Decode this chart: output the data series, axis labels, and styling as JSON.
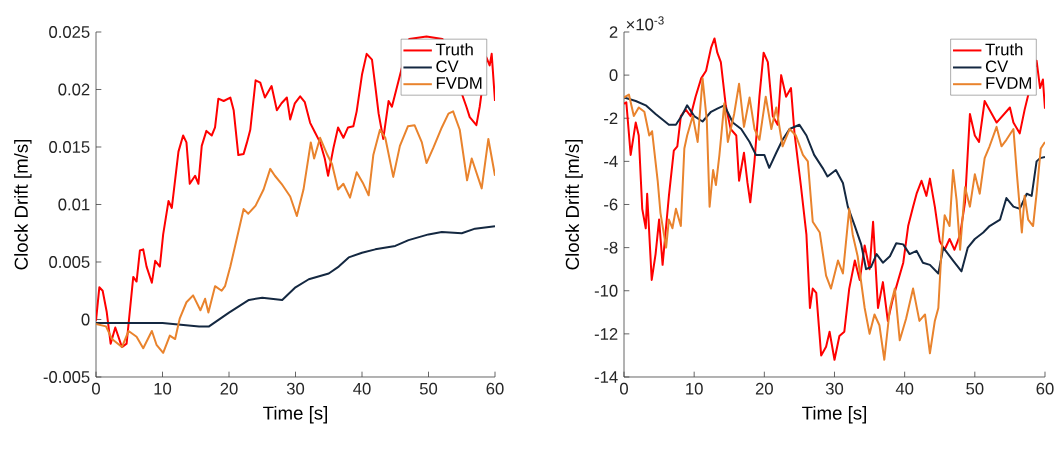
{
  "chart_data": [
    {
      "type": "line",
      "xlabel": "Time [s]",
      "ylabel": "Clock Drift [m/s]",
      "xlim": [
        0,
        60
      ],
      "ylim": [
        -0.005,
        0.025
      ],
      "xticks": [
        0,
        10,
        20,
        30,
        40,
        50,
        60
      ],
      "yticks": [
        -0.005,
        0,
        0.005,
        0.01,
        0.015,
        0.02,
        0.025
      ],
      "legend": "top right",
      "series": [
        {
          "name": "Truth",
          "color": "#ff0000",
          "x": [
            0,
            0.5,
            1.0,
            1.6,
            2.2,
            2.9,
            3.9,
            4.6,
            5.6,
            6.1,
            6.6,
            7.1,
            7.6,
            8.4,
            8.9,
            9.6,
            10.1,
            10.9,
            11.4,
            12.4,
            13.1,
            13.6,
            14.1,
            14.9,
            15.4,
            15.9,
            16.6,
            17.4,
            17.9,
            18.4,
            19.2,
            20.2,
            20.7,
            21.4,
            22.2,
            22.7,
            23.2,
            24.0,
            24.7,
            25.4,
            26.4,
            27.2,
            27.9,
            28.7,
            29.2,
            29.9,
            30.7,
            31.4,
            32.2,
            32.9,
            33.7,
            34.4,
            34.9,
            35.7,
            36.4,
            37.2,
            37.9,
            38.7,
            39.2,
            40.0,
            40.7,
            41.5,
            42.0,
            42.5,
            43.2,
            44.0,
            44.5,
            47.1,
            49.7,
            52.1,
            55.7,
            56.2,
            57.2,
            57.7,
            58.7,
            59.2,
            59.5,
            60
          ],
          "values": [
            -0.0001,
            0.0028,
            0.0025,
            0.0007,
            -0.0021,
            -0.0007,
            -0.0024,
            -0.0021,
            0.0037,
            0.0033,
            0.006,
            0.0061,
            0.0046,
            0.0032,
            0.0051,
            0.0046,
            0.0074,
            0.0103,
            0.0097,
            0.0146,
            0.016,
            0.0154,
            0.0118,
            0.0125,
            0.0118,
            0.0151,
            0.0164,
            0.016,
            0.0167,
            0.0192,
            0.019,
            0.0193,
            0.0182,
            0.0143,
            0.0144,
            0.0154,
            0.0165,
            0.0208,
            0.0206,
            0.0193,
            0.0203,
            0.0182,
            0.0188,
            0.0193,
            0.0174,
            0.0188,
            0.0194,
            0.0189,
            0.0171,
            0.0163,
            0.0154,
            0.014,
            0.0125,
            0.0149,
            0.0167,
            0.0158,
            0.0167,
            0.0168,
            0.0181,
            0.0213,
            0.0231,
            0.0226,
            0.0203,
            0.0179,
            0.0157,
            0.019,
            0.0185,
            0.0244,
            0.0246,
            0.0244,
            0.0185,
            0.0176,
            0.0169,
            0.0185,
            0.0228,
            0.0221,
            0.0231,
            0.019
          ]
        },
        {
          "name": "CV",
          "color": "#142841",
          "x": [
            0,
            10,
            15.5,
            17,
            20,
            23,
            25,
            28,
            30,
            32,
            35,
            36.5,
            38,
            40,
            42,
            45,
            47,
            50,
            52,
            55,
            57,
            60
          ],
          "values": [
            -0.0003,
            -0.0003,
            -0.0006,
            -0.0006,
            0.0006,
            0.0017,
            0.0019,
            0.0017,
            0.0028,
            0.0035,
            0.004,
            0.0046,
            0.0054,
            0.0058,
            0.0061,
            0.0064,
            0.0069,
            0.0074,
            0.0076,
            0.0075,
            0.0079,
            0.0081
          ]
        },
        {
          "name": "FVDM",
          "color": "#e9832d",
          "x": [
            0,
            1.5,
            2.4,
            3.9,
            4.9,
            6.1,
            7.1,
            8.4,
            9.1,
            10.1,
            11.1,
            11.9,
            12.6,
            13.6,
            14.6,
            15.7,
            16.4,
            16.9,
            17.9,
            18.9,
            19.4,
            20.2,
            21.2,
            22.2,
            22.9,
            24.0,
            25.2,
            26.2,
            26.9,
            27.9,
            29.2,
            30.2,
            31.2,
            32.3,
            32.8,
            33.7,
            34.8,
            35.5,
            36.4,
            37.2,
            38.2,
            39.2,
            40.2,
            41.0,
            41.7,
            42.7,
            43.5,
            44.7,
            45.7,
            46.9,
            47.9,
            49.0,
            49.7,
            50.7,
            52.0,
            53.0,
            53.7,
            54.7,
            55.8,
            56.5,
            58.0,
            59.0,
            60
          ],
          "values": [
            -0.0004,
            -0.0006,
            -0.0017,
            -0.0024,
            -0.001,
            -0.0015,
            -0.0025,
            -0.001,
            -0.0022,
            -0.0029,
            -0.0014,
            -0.0017,
            0.0001,
            0.0015,
            0.0021,
            0.0008,
            0.0018,
            0.0006,
            0.0029,
            0.0025,
            0.0029,
            0.0046,
            0.0071,
            0.0096,
            0.0092,
            0.0099,
            0.0113,
            0.0131,
            0.0125,
            0.0118,
            0.0107,
            0.009,
            0.0113,
            0.0154,
            0.014,
            0.0158,
            0.0143,
            0.0135,
            0.0113,
            0.0118,
            0.0106,
            0.0128,
            0.0118,
            0.0108,
            0.0143,
            0.0165,
            0.0158,
            0.0124,
            0.0151,
            0.0168,
            0.0169,
            0.0154,
            0.0136,
            0.0149,
            0.0167,
            0.0179,
            0.0181,
            0.0165,
            0.0121,
            0.014,
            0.0114,
            0.0157,
            0.0125
          ]
        }
      ]
    },
    {
      "type": "line",
      "xlabel": "Time [s]",
      "ylabel": "Clock Drift [m/s]",
      "annotations": [
        "×10$^{-3}$"
      ],
      "xlim": [
        0,
        60
      ],
      "ylim": [
        -14,
        2
      ],
      "xticks": [
        0,
        10,
        20,
        30,
        40,
        50,
        60
      ],
      "yticks": [
        -14,
        -12,
        -10,
        -8,
        -6,
        -4,
        -2,
        0,
        2
      ],
      "legend": "top right",
      "series": [
        {
          "name": "Truth",
          "color": "#ff0000",
          "x": [
            0,
            0.33,
            0.95,
            1.67,
            2.1,
            2.6,
            3.1,
            3.3,
            3.95,
            4.5,
            5.0,
            5.5,
            6.4,
            7.1,
            7.6,
            8.1,
            8.8,
            9.5,
            10.2,
            11.0,
            11.7,
            12.4,
            12.9,
            13.3,
            13.8,
            14.5,
            15.2,
            16.0,
            16.4,
            17.1,
            17.6,
            18.0,
            18.6,
            19.3,
            19.9,
            20.5,
            21.2,
            21.9,
            22.4,
            23.1,
            23.8,
            24.3,
            25.2,
            26.0,
            26.5,
            26.9,
            27.4,
            28.1,
            28.8,
            29.3,
            30.0,
            30.7,
            31.4,
            32.1,
            32.9,
            33.6,
            34.3,
            35.0,
            35.5,
            36.2,
            36.9,
            37.6,
            38.3,
            39.0,
            39.8,
            40.5,
            41.2,
            41.7,
            42.4,
            43.1,
            43.6,
            44.3,
            45.0,
            45.7,
            46.4,
            47.1,
            47.9,
            48.6,
            49.3,
            50.0,
            50.6,
            51.4,
            53.1,
            55.0,
            55.5,
            56.4,
            57.1,
            58.8,
            59.3,
            59.7,
            60
          ],
          "values": [
            -1.33,
            -1.26,
            -3.7,
            -2.2,
            -2.8,
            -6.2,
            -7.1,
            -5.5,
            -9.5,
            -8.3,
            -6.7,
            -8.8,
            -5.6,
            -3.5,
            -3.3,
            -1.9,
            -1.6,
            -1.9,
            -1.0,
            -0.15,
            0.2,
            1.26,
            1.7,
            1.04,
            0.6,
            -1.4,
            -2.5,
            -2.8,
            -4.9,
            -3.6,
            -5.0,
            -5.9,
            -4.0,
            -1.0,
            1.04,
            0.6,
            -1.9,
            -2.3,
            0,
            -1.0,
            -0.6,
            -2.7,
            -5.1,
            -7.4,
            -10.8,
            -9.9,
            -10.1,
            -13.0,
            -12.6,
            -11.9,
            -13.2,
            -12.1,
            -11.9,
            -9.9,
            -8.6,
            -9.5,
            -7.9,
            -9.0,
            -6.8,
            -10.8,
            -9.6,
            -11.4,
            -10.4,
            -9.6,
            -8.7,
            -7.0,
            -6.1,
            -5.5,
            -4.9,
            -5.6,
            -4.8,
            -6.1,
            -7.7,
            -8.1,
            -7.6,
            -8.1,
            -7.4,
            -5.9,
            -1.8,
            -2.8,
            -3.1,
            -1.2,
            -2.2,
            -1.5,
            -2.2,
            -2.7,
            -1.6,
            0.67,
            -0.6,
            -0.2,
            -1.56
          ]
        },
        {
          "name": "CV",
          "color": "#142841",
          "x": [
            0,
            1.67,
            3.1,
            4.5,
            6.4,
            7.4,
            8.3,
            9.0,
            10,
            11.2,
            12.4,
            13.3,
            14.3,
            15.5,
            16.7,
            17.9,
            18.8,
            20,
            20.7,
            21.7,
            22.6,
            23.6,
            25,
            26,
            27.1,
            28.3,
            29.0,
            30.2,
            31.2,
            31.9,
            32.9,
            33.8,
            34.5,
            35.2,
            36.0,
            36.9,
            37.9,
            38.8,
            39.8,
            40.7,
            41.7,
            42.6,
            43.6,
            44.8,
            45.5,
            46.2,
            46.9,
            48.1,
            49.0,
            50,
            51.2,
            52.1,
            53.6,
            54.5,
            55.5,
            56.4,
            57.4,
            58.1,
            58.8,
            59.3,
            60
          ],
          "values": [
            -1.04,
            -1.2,
            -1.4,
            -1.8,
            -2.3,
            -2.3,
            -1.85,
            -1.4,
            -1.9,
            -2.15,
            -1.7,
            -1.55,
            -1.4,
            -2.2,
            -2.5,
            -3.1,
            -3.7,
            -3.7,
            -4.3,
            -3.6,
            -3.0,
            -2.5,
            -2.3,
            -2.8,
            -3.7,
            -4.3,
            -4.7,
            -4.4,
            -5.0,
            -6.1,
            -7.0,
            -7.85,
            -9.0,
            -8.9,
            -8.3,
            -8.7,
            -8.4,
            -7.8,
            -7.85,
            -8.3,
            -8.15,
            -8.7,
            -8.8,
            -9.2,
            -8.0,
            -8.3,
            -8.6,
            -9.1,
            -8.0,
            -7.6,
            -7.3,
            -7.0,
            -6.7,
            -5.7,
            -6.1,
            -6.2,
            -5.5,
            -5.6,
            -4.0,
            -3.85,
            -3.8
          ]
        },
        {
          "name": "FVDM",
          "color": "#e9832d",
          "x": [
            0,
            0.7,
            1.4,
            2.1,
            2.9,
            3.6,
            4.0,
            4.8,
            5.2,
            6.0,
            6.4,
            6.9,
            7.4,
            8.1,
            8.6,
            9.0,
            9.8,
            10.5,
            11.2,
            11.8,
            12.2,
            12.7,
            13.1,
            13.6,
            14.3,
            14.8,
            15.7,
            16.4,
            17.1,
            17.9,
            18.6,
            19.3,
            20.2,
            21.0,
            21.7,
            22.6,
            23.6,
            24.5,
            25.5,
            26.2,
            26.9,
            27.9,
            28.8,
            29.5,
            30.5,
            31.2,
            32.1,
            32.6,
            33.3,
            34.3,
            35.0,
            35.7,
            36.4,
            37.1,
            37.9,
            38.6,
            39.3,
            40.2,
            41.2,
            42.1,
            42.9,
            43.6,
            44.3,
            44.8,
            45.2,
            45.7,
            46.4,
            46.9,
            47.4,
            47.9,
            48.6,
            49.3,
            50,
            50.7,
            51.4,
            52.1,
            53.1,
            53.8,
            54.5,
            55.5,
            56.0,
            56.7,
            57.1,
            57.6,
            58.3,
            58.8,
            59.4,
            60
          ],
          "values": [
            -1.04,
            -0.9,
            -1.9,
            -1.5,
            -1.7,
            -2.8,
            -2.6,
            -4.9,
            -6.4,
            -8.0,
            -6.7,
            -7.1,
            -6.2,
            -7.0,
            -3.4,
            -2.8,
            -1.9,
            -3.1,
            -0.15,
            -2.1,
            -6.1,
            -4.4,
            -5.1,
            -3.7,
            -1.3,
            -3.1,
            -1.8,
            -0.4,
            -2.4,
            -1.04,
            -2.5,
            -3.0,
            -1.0,
            -2.5,
            -1.5,
            -3.3,
            -2.5,
            -2.8,
            -3.7,
            -4.0,
            -6.8,
            -7.3,
            -9.3,
            -9.9,
            -8.6,
            -9.2,
            -6.2,
            -7.4,
            -8.4,
            -10.8,
            -12.0,
            -11.1,
            -11.6,
            -13.2,
            -10.8,
            -9.9,
            -12.3,
            -11.3,
            -9.9,
            -11.4,
            -11.1,
            -12.9,
            -11.4,
            -10.8,
            -8.4,
            -6.5,
            -7.0,
            -4.4,
            -5.8,
            -8.1,
            -5.2,
            -6.1,
            -4.6,
            -5.5,
            -3.85,
            -3.3,
            -2.4,
            -3.3,
            -3.0,
            -2.5,
            -4.6,
            -7.3,
            -5.6,
            -6.7,
            -7.0,
            -5.5,
            -3.4,
            -3.1
          ]
        }
      ]
    }
  ]
}
